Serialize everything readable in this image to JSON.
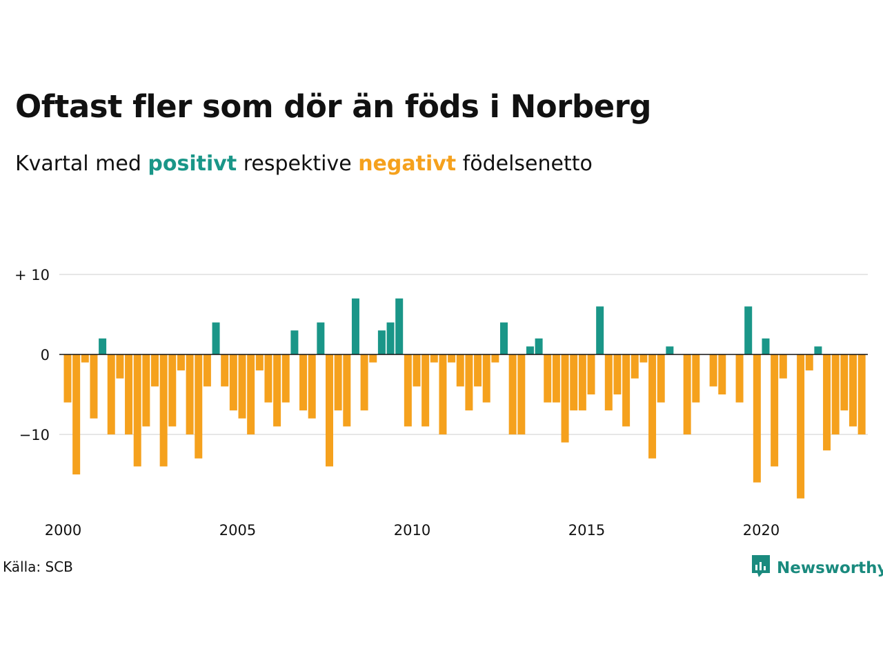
{
  "title": "Oftast fler som dör än föds i Norberg",
  "subtitle": {
    "before": "Kvartal med ",
    "positive": "positivt",
    "middle": " respektive ",
    "negative": "negativt",
    "after": " födelsenetto"
  },
  "source": "Källa: SCB",
  "brand": "Newsworthy",
  "colors": {
    "positive": "#1a9688",
    "negative": "#f5a11d",
    "text": "#111111",
    "grid": "#dddddd"
  },
  "chart_data": {
    "type": "bar",
    "x_start": "2000 Q1",
    "values": [
      -6,
      -15,
      -1,
      -8,
      2,
      -10,
      -3,
      -10,
      -14,
      -9,
      -4,
      -14,
      -9,
      -2,
      -10,
      -13,
      -4,
      4,
      -4,
      -7,
      -8,
      -10,
      -2,
      -6,
      -9,
      -6,
      3,
      -7,
      -8,
      4,
      -14,
      -7,
      -9,
      7,
      -7,
      -1,
      3,
      4,
      7,
      -9,
      -4,
      -9,
      -1,
      -10,
      -1,
      -4,
      -7,
      -4,
      -6,
      -1,
      4,
      -10,
      -10,
      1,
      2,
      -6,
      -6,
      -11,
      -7,
      -7,
      -5,
      6,
      -7,
      -5,
      -9,
      -3,
      -1,
      -13,
      -6,
      1,
      0,
      -10,
      -6,
      0,
      -4,
      -5,
      0,
      -6,
      6,
      -16,
      2,
      -14,
      -3,
      0,
      -18,
      -2,
      1,
      -12,
      -10,
      -7,
      -9,
      -10
    ],
    "ylim": [
      -20,
      12
    ],
    "y_ticks": [
      {
        "value": 10,
        "label": "+ 10"
      },
      {
        "value": 0,
        "label": "0"
      },
      {
        "value": -10,
        "label": "−10"
      }
    ],
    "x_ticks": [
      {
        "year": 2000,
        "label": "2000"
      },
      {
        "year": 2005,
        "label": "2005"
      },
      {
        "year": 2010,
        "label": "2010"
      },
      {
        "year": 2015,
        "label": "2015"
      },
      {
        "year": 2020,
        "label": "2020"
      }
    ],
    "grid": true
  }
}
